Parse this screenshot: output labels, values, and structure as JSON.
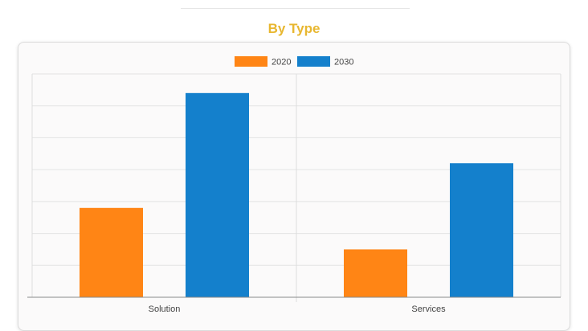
{
  "section": {
    "title": "By Type"
  },
  "colors": {
    "title": "#e8b730",
    "series_2020": "#ff8515",
    "series_2030": "#1480cc"
  },
  "chart_data": {
    "type": "bar",
    "categories": [
      "Solution",
      "Services"
    ],
    "series": [
      {
        "name": "2020",
        "values": [
          28,
          15
        ],
        "color": "#ff8515"
      },
      {
        "name": "2030",
        "values": [
          64,
          42
        ],
        "color": "#1480cc"
      }
    ],
    "ylim": [
      0,
      70
    ],
    "grid": true,
    "legend": "top-center",
    "title": "",
    "xlabel": "",
    "ylabel": ""
  }
}
